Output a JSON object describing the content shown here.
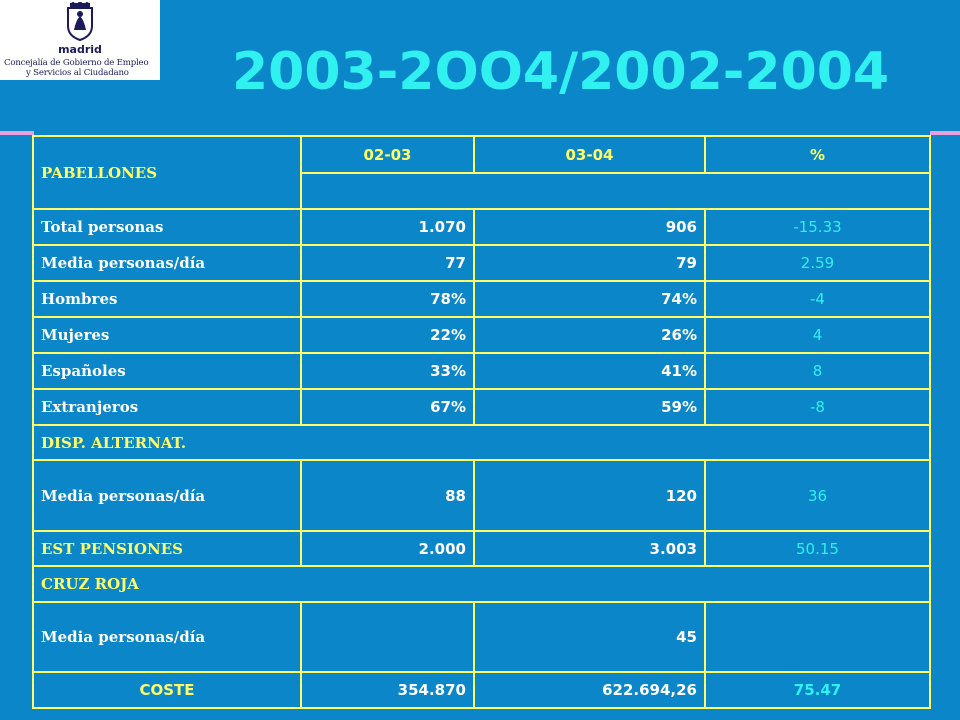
{
  "logo": {
    "city": "madrid",
    "line1": "Concejalía de Gobierno de Empleo",
    "line2": "y Servicios al Ciudadano"
  },
  "title": "2003-2OO4/2002-2004",
  "table": {
    "headers": [
      "02-03",
      "03-04",
      "%"
    ],
    "sections": {
      "pabellones": "PABELLONES",
      "disp": "DISP. ALTERNAT.",
      "est": "EST PENSIONES",
      "cruz": "CRUZ ROJA"
    },
    "pabellones_rows": [
      {
        "label": "Total personas",
        "v1": "1.070",
        "v2": "906",
        "pct": "-15.33"
      },
      {
        "label": "Media personas/día",
        "v1": "77",
        "v2": "79",
        "pct": "2.59"
      },
      {
        "label": "Hombres",
        "v1": "78%",
        "v2": "74%",
        "pct": "-4"
      },
      {
        "label": "Mujeres",
        "v1": "22%",
        "v2": "26%",
        "pct": "4"
      },
      {
        "label": "Españoles",
        "v1": "33%",
        "v2": "41%",
        "pct": "8"
      },
      {
        "label": "Extranjeros",
        "v1": "67%",
        "v2": "59%",
        "pct": "-8"
      }
    ],
    "disp_row": {
      "label": "Media personas/día",
      "v1": "88",
      "v2": "120",
      "pct": "36"
    },
    "est_row": {
      "v1": "2.000",
      "v2": "3.003",
      "pct": "50.15"
    },
    "cruz_row": {
      "label": "Media personas/día",
      "v1": "",
      "v2": "45",
      "pct": ""
    },
    "coste_row": {
      "label": "COSTE",
      "v1": "354.870",
      "v2": "622.694,26",
      "pct": "75.47"
    }
  },
  "colors": {
    "background": "#0b86c8",
    "title": "#30f0f0",
    "border": "#ffff66",
    "accent_bar": "#e6a0e0"
  }
}
